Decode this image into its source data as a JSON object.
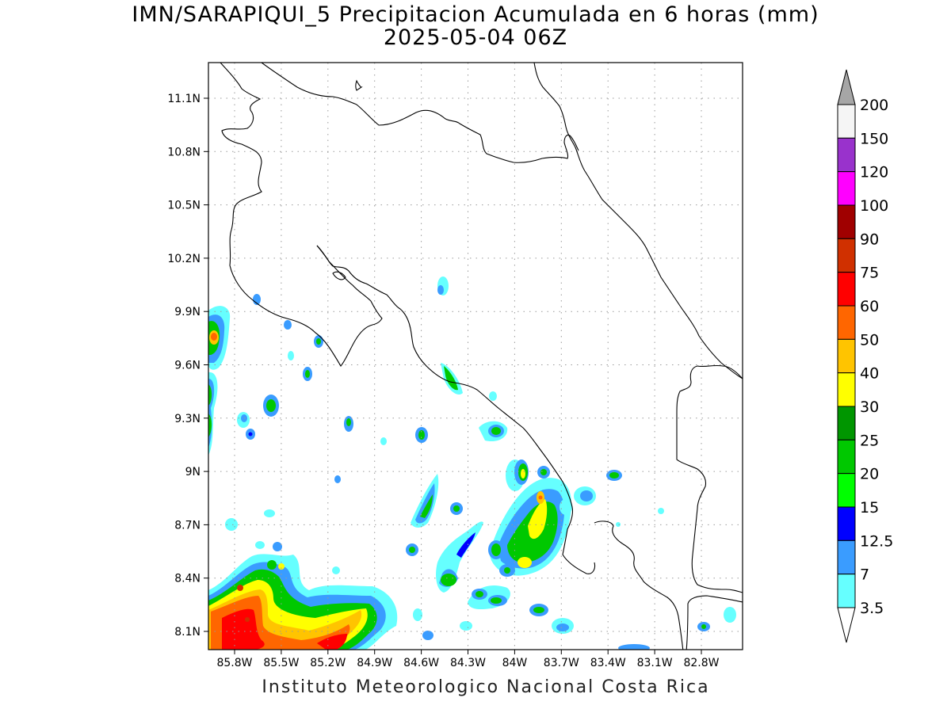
{
  "title": "IMN/SARAPIQUI_5 Precipitacion Acumulada en 6 horas (mm)",
  "subtitle": "2025-05-04 06Z",
  "footer": "Instituto Meteorologico Nacional Costa Rica",
  "map": {
    "lat_ticks": [
      "11.1N",
      "10.8N",
      "10.5N",
      "10.2N",
      "9.9N",
      "9.6N",
      "9.3N",
      "9N",
      "8.7N",
      "8.4N",
      "8.1N"
    ],
    "lon_ticks": [
      "85.8W",
      "85.5W",
      "85.2W",
      "84.9W",
      "84.6W",
      "84.3W",
      "84W",
      "83.7W",
      "83.4W",
      "83.1W",
      "82.8W"
    ],
    "lat_values": [
      11.1,
      10.8,
      10.5,
      10.2,
      9.9,
      9.6,
      9.3,
      9.0,
      8.7,
      8.4,
      8.1
    ],
    "lon_values": [
      -85.8,
      -85.5,
      -85.2,
      -84.9,
      -84.6,
      -84.3,
      -84.0,
      -83.7,
      -83.4,
      -83.1,
      -82.8
    ],
    "grid": true
  },
  "colorbar": {
    "labels": [
      "200",
      "150",
      "120",
      "100",
      "90",
      "75",
      "60",
      "50",
      "40",
      "30",
      "25",
      "20",
      "15",
      "12.5",
      "7",
      "3.5"
    ],
    "colors": [
      "#f5f5f5",
      "#9932cc",
      "#ff00ff",
      "#a00000",
      "#d03000",
      "#ff0000",
      "#ff6600",
      "#ffc400",
      "#ffff00",
      "#009600",
      "#00c800",
      "#00ff00",
      "#0000ff",
      "#3a9cff",
      "#66ffff"
    ],
    "top_arrow_color": "#a6a6a6",
    "bottom_arrow_color": "#ffffff"
  }
}
